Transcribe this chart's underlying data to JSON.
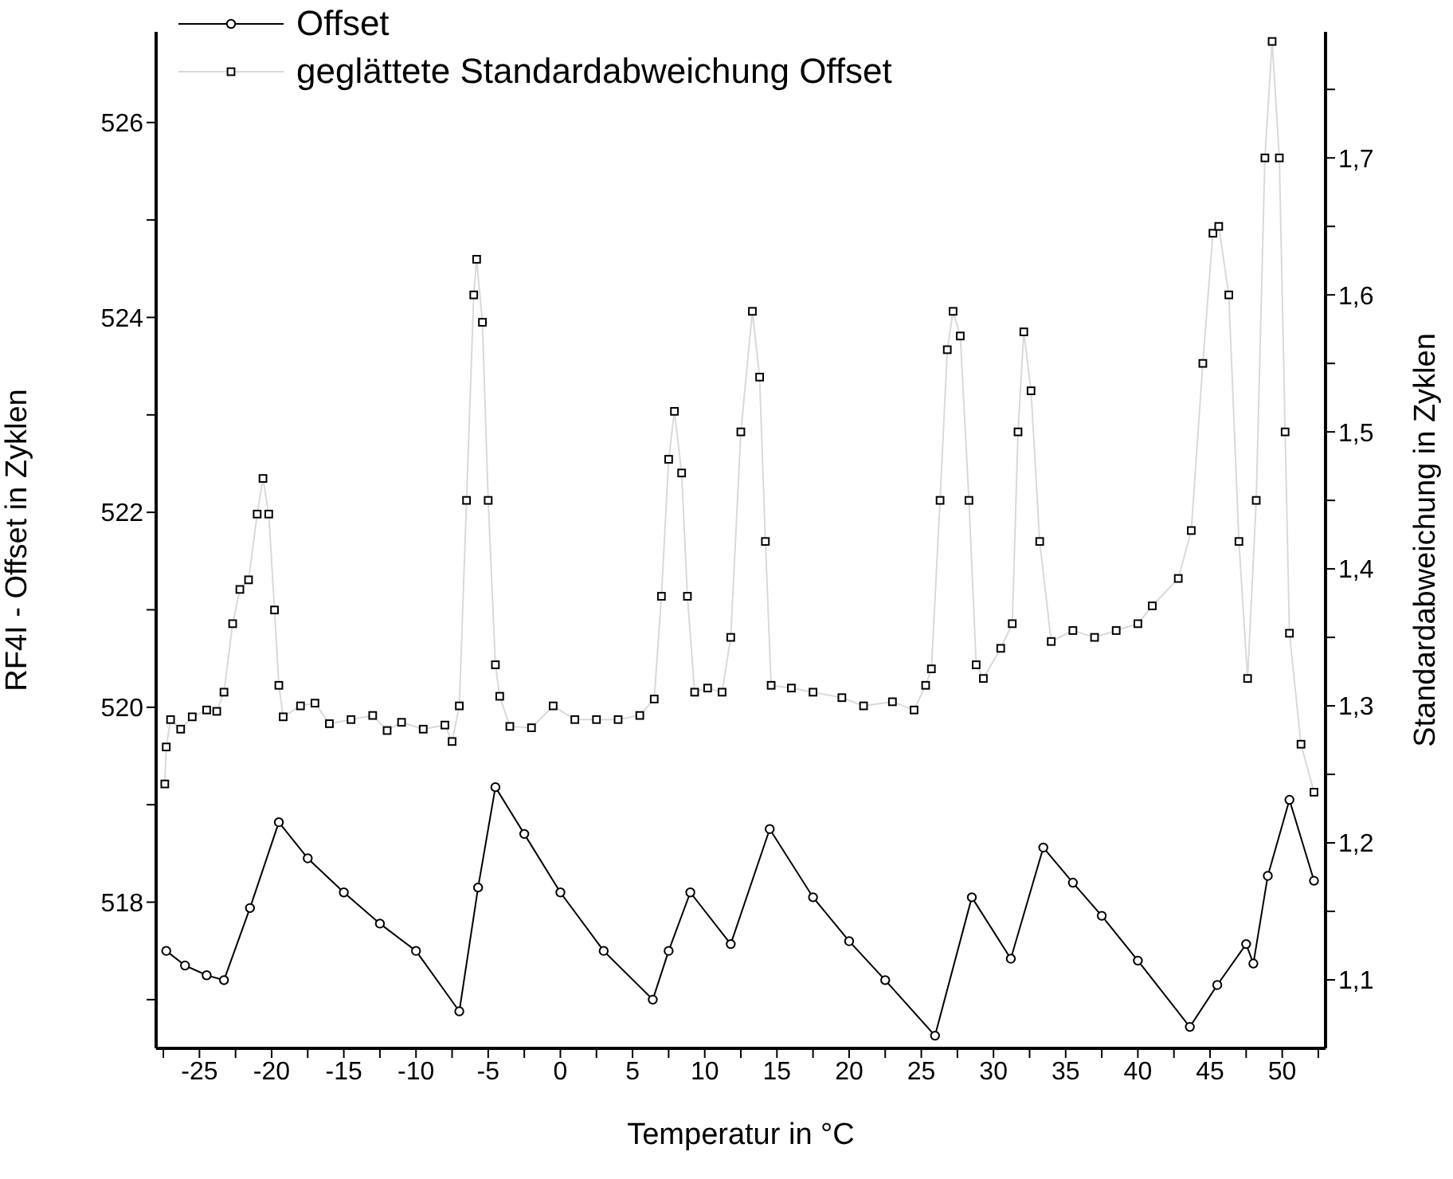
{
  "chart_data": {
    "type": "line",
    "xlabel": "Temperatur in °C",
    "ylabel": "RF4I - Offset in Zyklen",
    "y2label": "Standardabweichung in Zyklen",
    "xlim": [
      -28,
      53
    ],
    "xticks": [
      {
        "value": -27.5,
        "label": null
      },
      -25,
      {
        "value": -22.5,
        "label": null
      },
      -20,
      {
        "value": -17.5,
        "label": null
      },
      -15,
      {
        "value": -12.5,
        "label": null
      },
      -10,
      {
        "value": -7.5,
        "label": null
      },
      -5,
      {
        "value": -2.5,
        "label": null
      },
      0,
      {
        "value": 2.5,
        "label": null
      },
      5,
      {
        "value": 7.5,
        "label": null
      },
      10,
      {
        "value": 12.5,
        "label": null
      },
      15,
      {
        "value": 17.5,
        "label": null
      },
      20,
      {
        "value": 22.5,
        "label": null
      },
      25,
      {
        "value": 27.5,
        "label": null
      },
      30,
      {
        "value": 32.5,
        "label": null
      },
      35,
      {
        "value": 37.5,
        "label": null
      },
      40,
      {
        "value": 42.5,
        "label": null
      },
      45,
      {
        "value": 47.5,
        "label": null
      },
      50,
      {
        "value": 52.5,
        "label": null
      }
    ],
    "ylim": [
      516.5,
      526.93
    ],
    "yticks": [
      {
        "value": 517,
        "label": null
      },
      518,
      {
        "value": 519,
        "label": null
      },
      520,
      {
        "value": 521,
        "label": null
      },
      522,
      {
        "value": 523,
        "label": null
      },
      524,
      {
        "value": 525,
        "label": null
      },
      526
    ],
    "y2lim": [
      1.05,
      1.792
    ],
    "y2ticks": [
      {
        "value": 1.1,
        "label": "1,1"
      },
      {
        "value": 1.15,
        "label": null
      },
      {
        "value": 1.2,
        "label": "1,2"
      },
      {
        "value": 1.25,
        "label": null
      },
      {
        "value": 1.3,
        "label": "1,3"
      },
      {
        "value": 1.35,
        "label": null
      },
      {
        "value": 1.4,
        "label": "1,4"
      },
      {
        "value": 1.45,
        "label": null
      },
      {
        "value": 1.5,
        "label": "1,5"
      },
      {
        "value": 1.55,
        "label": null
      },
      {
        "value": 1.6,
        "label": "1,6"
      },
      {
        "value": 1.65,
        "label": null
      },
      {
        "value": 1.7,
        "label": "1,7"
      },
      {
        "value": 1.75,
        "label": null
      }
    ],
    "legend": "top left",
    "series": [
      {
        "name": "Offset",
        "color": "#000000",
        "marker": "circle",
        "x": [
          -27.3,
          -26,
          -24.5,
          -23.3,
          -21.5,
          -19.5,
          -17.5,
          -15,
          -12.5,
          -10,
          -7.0,
          -5.7,
          -4.5,
          -2.5,
          0,
          3,
          6.4,
          7.5,
          9.0,
          11.8,
          14.5,
          17.5,
          20,
          22.5,
          25.95,
          28.5,
          31.2,
          33.45,
          35.5,
          37.5,
          40,
          43.6,
          45.5,
          47.5,
          48.0,
          49,
          50.5,
          52.2
        ],
        "values": [
          517.5,
          517.35,
          517.25,
          517.2,
          517.94,
          518.82,
          518.45,
          518.1,
          517.78,
          517.5,
          516.88,
          518.15,
          519.18,
          518.7,
          518.1,
          517.5,
          517.0,
          517.5,
          518.1,
          517.57,
          518.75,
          518.05,
          517.6,
          517.2,
          516.63,
          518.05,
          517.42,
          518.56,
          518.2,
          517.86,
          517.4,
          516.72,
          517.15,
          517.57,
          517.37,
          518.27,
          519.05,
          518.22
        ]
      },
      {
        "name": "geglättete Standardabweichung Offset",
        "color": "#000000",
        "marker": "square",
        "axis": "y2",
        "x": [
          -27.4,
          -27.3,
          -27.0,
          -26.3,
          -25.5,
          -24.5,
          -23.8,
          -23.3,
          -22.7,
          -22.2,
          -21.6,
          -21.0,
          -20.6,
          -20.2,
          -19.8,
          -19.5,
          -19.2,
          -18.0,
          -17.0,
          -16.0,
          -14.5,
          -13.0,
          -12.0,
          -11.0,
          -9.5,
          -8.0,
          -7.5,
          -7.0,
          -6.5,
          -6.0,
          -5.8,
          -5.4,
          -5.0,
          -4.5,
          -4.2,
          -3.5,
          -2.0,
          -0.5,
          1.0,
          2.5,
          4.0,
          5.5,
          6.5,
          7.0,
          7.5,
          7.9,
          8.4,
          8.8,
          9.3,
          10.2,
          11.2,
          11.8,
          12.5,
          13.3,
          13.8,
          14.2,
          14.6,
          16.0,
          17.5,
          19.5,
          21.0,
          23.0,
          24.5,
          25.3,
          25.7,
          26.3,
          26.8,
          27.2,
          27.7,
          28.3,
          28.8,
          29.3,
          30.5,
          31.3,
          31.7,
          32.1,
          32.6,
          33.2,
          34.0,
          35.5,
          37.0,
          38.5,
          40.0,
          41.0,
          42.8,
          43.7,
          44.5,
          45.2,
          45.6,
          46.3,
          47.0,
          47.6,
          48.2,
          48.8,
          49.3,
          49.8,
          50.2,
          50.5,
          51.3,
          52.2
        ],
        "values": [
          1.243,
          1.27,
          1.29,
          1.283,
          1.292,
          1.297,
          1.296,
          1.31,
          1.36,
          1.385,
          1.392,
          1.44,
          1.466,
          1.44,
          1.37,
          1.315,
          1.292,
          1.3,
          1.302,
          1.287,
          1.29,
          1.293,
          1.282,
          1.288,
          1.283,
          1.286,
          1.274,
          1.3,
          1.45,
          1.6,
          1.626,
          1.58,
          1.45,
          1.33,
          1.307,
          1.285,
          1.284,
          1.3,
          1.29,
          1.29,
          1.29,
          1.293,
          1.305,
          1.38,
          1.48,
          1.515,
          1.47,
          1.38,
          1.31,
          1.313,
          1.31,
          1.35,
          1.5,
          1.588,
          1.54,
          1.42,
          1.315,
          1.313,
          1.31,
          1.306,
          1.3,
          1.303,
          1.297,
          1.315,
          1.327,
          1.45,
          1.56,
          1.588,
          1.57,
          1.45,
          1.33,
          1.32,
          1.342,
          1.36,
          1.5,
          1.573,
          1.53,
          1.42,
          1.347,
          1.355,
          1.35,
          1.355,
          1.36,
          1.373,
          1.393,
          1.428,
          1.55,
          1.645,
          1.65,
          1.6,
          1.42,
          1.32,
          1.45,
          1.7,
          1.785,
          1.7,
          1.5,
          1.353,
          1.272,
          1.237
        ]
      }
    ]
  }
}
